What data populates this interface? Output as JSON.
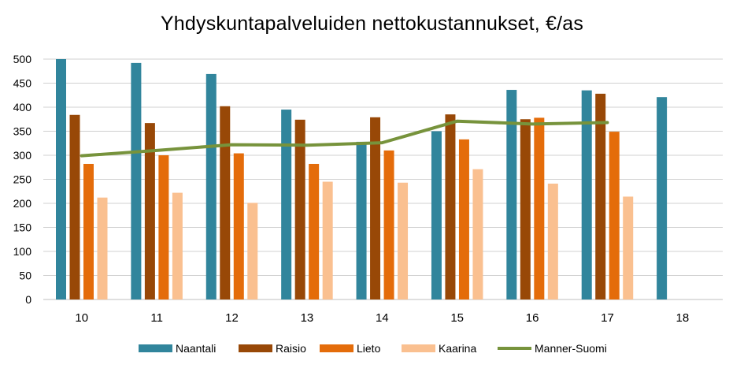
{
  "chart_data": {
    "type": "bar",
    "title": "Yhdyskuntapalveluiden  nettokustannukset, €/as",
    "xlabel": "",
    "ylabel": "",
    "ylim": [
      0,
      500
    ],
    "yticks": [
      0,
      50,
      100,
      150,
      200,
      250,
      300,
      350,
      400,
      450,
      500
    ],
    "grid": true,
    "legend_position": "bottom",
    "categories": [
      "10",
      "11",
      "12",
      "13",
      "14",
      "15",
      "16",
      "17",
      "18"
    ],
    "series": [
      {
        "name": "Naantali",
        "kind": "bar",
        "color": "#31859C",
        "values": [
          500,
          492,
          469,
          395,
          328,
          350,
          436,
          435,
          421
        ]
      },
      {
        "name": "Raisio",
        "kind": "bar",
        "color": "#984807",
        "values": [
          384,
          367,
          402,
          374,
          379,
          385,
          375,
          428,
          null
        ]
      },
      {
        "name": "Lieto",
        "kind": "bar",
        "color": "#E46C0A",
        "values": [
          282,
          300,
          304,
          282,
          310,
          333,
          378,
          349,
          null
        ]
      },
      {
        "name": "Kaarina",
        "kind": "bar",
        "color": "#FAC090",
        "values": [
          212,
          222,
          201,
          245,
          243,
          271,
          241,
          214,
          null
        ]
      },
      {
        "name": "Manner-Suomi",
        "kind": "line",
        "color": "#77933C",
        "values": [
          299,
          310,
          322,
          321,
          326,
          371,
          365,
          368,
          null
        ]
      }
    ]
  }
}
